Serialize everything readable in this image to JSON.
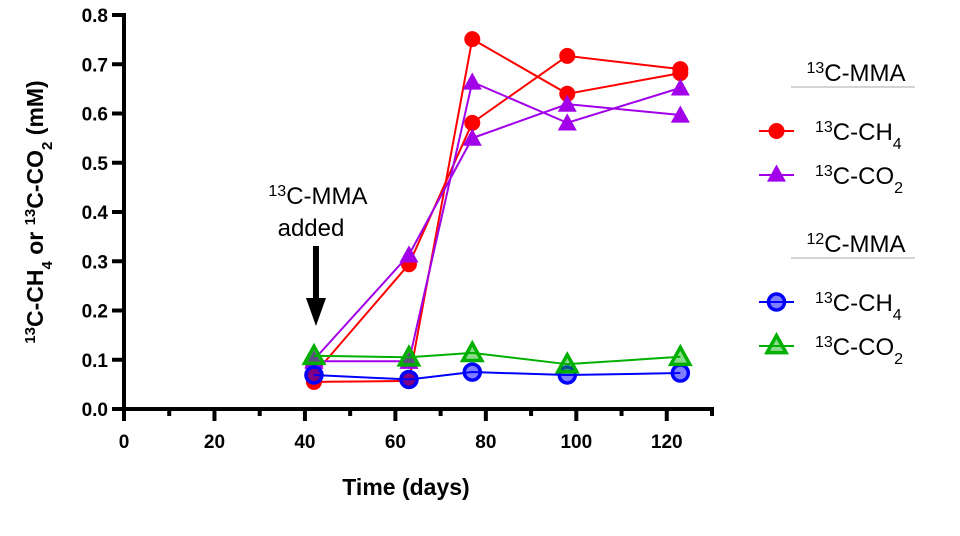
{
  "chart_data": {
    "type": "line",
    "title": "",
    "xlabel": "Time (days)",
    "ylabel": {
      "parts": [
        {
          "sup": "13"
        },
        {
          "text": "C-CH"
        },
        {
          "sub": "4"
        },
        {
          "text": " or "
        },
        {
          "sup": "13"
        },
        {
          "text": "C-CO"
        },
        {
          "sub": "2"
        },
        {
          "text": " (mM)"
        }
      ],
      "full": "13C-CH4 or 13C-CO2 (mM)"
    },
    "xlim": [
      0,
      130
    ],
    "ylim": [
      0,
      0.8
    ],
    "x_ticks": [
      0,
      20,
      40,
      60,
      80,
      100,
      120
    ],
    "x_tick_labels": [
      "0",
      "20",
      "40",
      "60",
      "80",
      "100",
      "120"
    ],
    "x_minor_ticks": [
      10,
      30,
      50,
      70,
      90,
      110,
      130
    ],
    "y_ticks": [
      0.0,
      0.1,
      0.2,
      0.3,
      0.4,
      0.5,
      0.6,
      0.7,
      0.8
    ],
    "y_tick_labels": [
      "0.0",
      "0.1",
      "0.2",
      "0.3",
      "0.4",
      "0.5",
      "0.6",
      "0.7",
      "0.8"
    ],
    "grid": false,
    "legend_position": "right",
    "annotation": {
      "line1_sup": "13",
      "line1_text": "C-MMA",
      "line2_text": "added",
      "x": 42
    },
    "legend_groups": [
      {
        "title_sup": "13",
        "title_text": "C-MMA",
        "entries": [
          {
            "sup": "13",
            "text": "C-CH",
            "sub": "4",
            "series": "13C-MMA 13C-CH4"
          },
          {
            "sup": "13",
            "text": "C-CO",
            "sub": "2",
            "series": "13C-MMA 13C-CO2"
          }
        ]
      },
      {
        "title_sup": "12",
        "title_text": "C-MMA",
        "entries": [
          {
            "sup": "13",
            "text": "C-CH",
            "sub": "4",
            "series": "12C-MMA 13C-CH4"
          },
          {
            "sup": "13",
            "text": "C-CO",
            "sub": "2",
            "series": "12C-MMA 13C-CO2"
          }
        ]
      }
    ],
    "series": [
      {
        "name": "13C-MMA 13C-CH4 rep A",
        "group": "13C-MMA",
        "marker": "circle",
        "filled": true,
        "color": "#ff0000",
        "x": [
          42,
          63,
          77,
          98,
          123
        ],
        "y": [
          0.055,
          0.057,
          0.751,
          0.64,
          0.682
        ]
      },
      {
        "name": "13C-MMA 13C-CH4 rep B",
        "group": "13C-MMA",
        "marker": "circle",
        "filled": true,
        "color": "#ff0000",
        "x": [
          42,
          63,
          77,
          98,
          123
        ],
        "y": [
          0.07,
          0.294,
          0.581,
          0.717,
          0.69
        ]
      },
      {
        "name": "13C-MMA 13C-CO2 rep A",
        "group": "13C-MMA",
        "marker": "triangle",
        "filled": true,
        "color": "#a100e8",
        "x": [
          42,
          63,
          77,
          98,
          123
        ],
        "y": [
          0.097,
          0.097,
          0.664,
          0.581,
          0.652
        ]
      },
      {
        "name": "13C-MMA 13C-CO2 rep B",
        "group": "13C-MMA",
        "marker": "triangle",
        "filled": true,
        "color": "#a100e8",
        "x": [
          42,
          63,
          77,
          98,
          123
        ],
        "y": [
          0.1,
          0.313,
          0.55,
          0.619,
          0.597
        ]
      },
      {
        "name": "12C-MMA 13C-CH4",
        "group": "12C-MMA",
        "marker": "circle",
        "filled": false,
        "color": "#0000ff",
        "x": [
          42,
          63,
          77,
          98,
          123
        ],
        "y": [
          0.069,
          0.06,
          0.075,
          0.069,
          0.073
        ]
      },
      {
        "name": "12C-MMA 13C-CO2",
        "group": "12C-MMA",
        "marker": "triangle",
        "filled": false,
        "color": "#00b000",
        "x": [
          42,
          63,
          77,
          98,
          123
        ],
        "y": [
          0.108,
          0.105,
          0.114,
          0.091,
          0.106
        ]
      }
    ]
  }
}
